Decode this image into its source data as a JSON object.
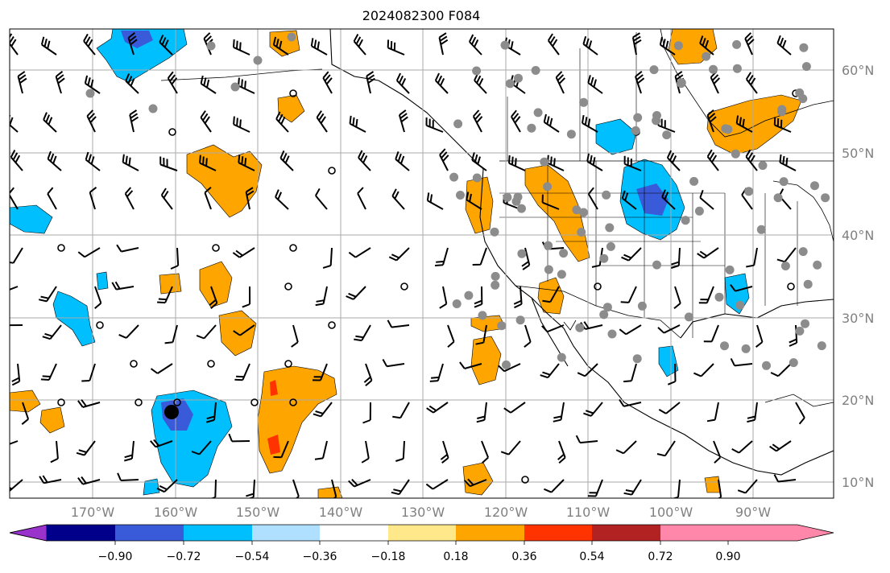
{
  "map": {
    "title": "2024082300 F084",
    "lat_labels": [
      "60°N",
      "50°N",
      "40°N",
      "30°N",
      "20°N",
      "10°N"
    ],
    "lat_values": [
      60,
      50,
      40,
      30,
      20,
      10
    ],
    "lon_labels": [
      "170°W",
      "160°W",
      "150°W",
      "140°W",
      "130°W",
      "120°W",
      "110°W",
      "100°W",
      "90°W"
    ],
    "lon_values": [
      -170,
      -160,
      -150,
      -140,
      -130,
      -120,
      -110,
      -100,
      -90
    ],
    "grid": true,
    "colors": {
      "land_outline": "#000000",
      "grid": "#aaaaaa",
      "station_dot": "#8c8c8c",
      "barb": "#000000"
    }
  },
  "colorbar": {
    "levels": [
      "−0.90",
      "−0.72",
      "−0.54",
      "−0.36",
      "−0.18",
      "0.18",
      "0.36",
      "0.54",
      "0.72",
      "0.90"
    ],
    "colors": [
      "#9933cc",
      "#00008b",
      "#3a5bd9",
      "#00bfff",
      "#b0e0ff",
      "#ffffff",
      "#ffe88a",
      "#ffa500",
      "#ff3300",
      "#b22222",
      "#ff88aa"
    ],
    "extend": "both"
  }
}
